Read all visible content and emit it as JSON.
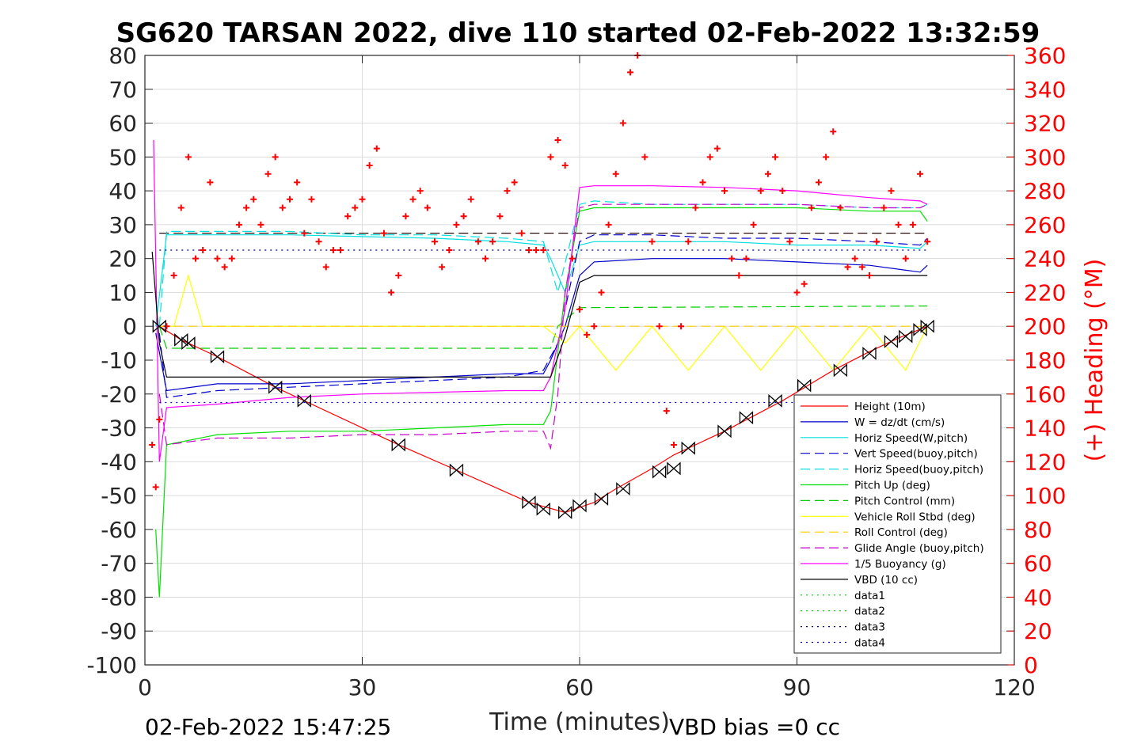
{
  "chart_data": {
    "type": "line",
    "title": "SG620 TARSAN 2022, dive 110 started 02-Feb-2022 13:32:59",
    "xlabel": "Time (minutes)",
    "ylabel_right": "(+) Heading (°M)",
    "xlim": [
      0,
      120
    ],
    "ylim": [
      -100,
      80
    ],
    "ylim_right": [
      0,
      360
    ],
    "x_ticks": [
      0,
      30,
      60,
      90,
      120
    ],
    "y_ticks": [
      80,
      70,
      60,
      50,
      40,
      30,
      20,
      10,
      0,
      -10,
      -20,
      -30,
      -40,
      -50,
      -60,
      -70,
      -80,
      -90,
      -100
    ],
    "y_ticks_right": [
      360,
      340,
      320,
      300,
      280,
      260,
      240,
      220,
      200,
      180,
      160,
      140,
      120,
      100,
      80,
      60,
      40,
      20,
      0
    ],
    "grid": true,
    "legend_position": "bottom-right",
    "footer_left": "02-Feb-2022 15:47:25",
    "footer_right": "VBD bias =0 cc",
    "series": [
      {
        "name": "Height (10m)",
        "color": "#ff0000",
        "style": "solid",
        "x": [
          2,
          5,
          10,
          18,
          22,
          35,
          43,
          53,
          58,
          62,
          65,
          70,
          73,
          80,
          88,
          95,
          100,
          104,
          108
        ],
        "y": [
          0,
          -4,
          -9,
          -18,
          -22,
          -35,
          -42.5,
          -52,
          -55,
          -52,
          -48,
          -42,
          -38,
          -31,
          -22,
          -13,
          -7.5,
          -3.5,
          0
        ]
      },
      {
        "name": "W = dz/dt (cm/s)",
        "color": "#0000cc",
        "style": "solid",
        "x": [
          1.5,
          3,
          10,
          20,
          30,
          40,
          50,
          55,
          56,
          58,
          60,
          62,
          70,
          80,
          90,
          100,
          107,
          108
        ],
        "y": [
          -2,
          -19,
          -17,
          -17,
          -16,
          -15,
          -14,
          -14,
          -10,
          0,
          15,
          19,
          20,
          20,
          19,
          18,
          16,
          18
        ]
      },
      {
        "name": "Horiz Speed(W,pitch)",
        "color": "#00e0e0",
        "style": "solid",
        "x": [
          1.5,
          3,
          10,
          20,
          30,
          40,
          50,
          55,
          56,
          58,
          60,
          62,
          70,
          80,
          90,
          100,
          107,
          108
        ],
        "y": [
          0,
          27,
          27,
          27,
          26.5,
          26,
          25,
          24,
          20,
          10,
          24,
          25,
          25,
          25,
          24,
          24,
          23,
          25
        ]
      },
      {
        "name": "Vert Speed(buoy,pitch)",
        "color": "#0000cc",
        "style": "dashed",
        "x": [
          2,
          3,
          10,
          20,
          30,
          40,
          50,
          55,
          57,
          60,
          62,
          70,
          80,
          90,
          100,
          107,
          108
        ],
        "y": [
          -2,
          -21,
          -19,
          -18,
          -17,
          -16,
          -15,
          -13,
          -5,
          25,
          27,
          27,
          26,
          26,
          25,
          24,
          26
        ]
      },
      {
        "name": "Horiz Speed(buoy,pitch)",
        "color": "#00e0e0",
        "style": "dashed",
        "x": [
          2,
          3,
          10,
          20,
          30,
          40,
          50,
          55,
          57,
          60,
          62,
          70,
          80,
          90,
          100,
          107,
          108
        ],
        "y": [
          0,
          28,
          28,
          28,
          27,
          27,
          26,
          25,
          10,
          36,
          37,
          36,
          36,
          36,
          35,
          35,
          36
        ]
      },
      {
        "name": "Pitch Up (deg)",
        "color": "#00e000",
        "style": "solid",
        "x": [
          1.5,
          2,
          3,
          10,
          20,
          30,
          40,
          50,
          55,
          56,
          58,
          60,
          62,
          70,
          80,
          90,
          100,
          107,
          108
        ],
        "y": [
          -60,
          -80,
          -35,
          -32,
          -31,
          -31,
          -30,
          -29,
          -29,
          -25,
          10,
          34,
          35,
          35,
          35,
          35,
          34,
          34,
          31
        ]
      },
      {
        "name": "Pitch Control (mm)",
        "color": "#00cc00",
        "style": "dashed",
        "x": [
          2,
          3,
          10,
          56,
          57,
          60,
          108
        ],
        "y": [
          0,
          -6.5,
          -6.5,
          -6.5,
          0,
          5.5,
          6
        ]
      },
      {
        "name": "Vehicle Roll Stbd (deg)",
        "color": "#ffff00",
        "style": "solid",
        "x": [
          2,
          4,
          6,
          8,
          10,
          20,
          30,
          40,
          50,
          55,
          58,
          60,
          65,
          70,
          75,
          80,
          85,
          90,
          95,
          100,
          105,
          108
        ],
        "y": [
          0,
          0,
          15,
          0,
          0,
          0,
          0,
          0,
          0,
          0,
          -5,
          0,
          -13,
          0,
          -13,
          0,
          -13,
          0,
          -13,
          0,
          -13,
          0
        ]
      },
      {
        "name": "Roll Control (deg)",
        "color": "#ffcc00",
        "style": "dashed",
        "x": [
          2,
          108
        ],
        "y": [
          0,
          0
        ]
      },
      {
        "name": "Glide Angle (buoy,pitch)",
        "color": "#cc00cc",
        "style": "dashed",
        "x": [
          2,
          3,
          10,
          20,
          30,
          40,
          50,
          55,
          56,
          57,
          58,
          60,
          62,
          70,
          80,
          90,
          100,
          107,
          108
        ],
        "y": [
          -20,
          -35,
          -33,
          -33,
          -32,
          -32,
          -31,
          -31,
          -36,
          -20,
          10,
          35,
          36,
          36,
          36,
          36,
          35,
          35,
          36
        ]
      },
      {
        "name": "1/5 Buoyancy (g)",
        "color": "#ff00ff",
        "style": "solid",
        "x": [
          1.2,
          2,
          3,
          10,
          20,
          30,
          40,
          50,
          55,
          56,
          58,
          60,
          62,
          70,
          80,
          90,
          100,
          107,
          108
        ],
        "y": [
          55,
          -40,
          -24,
          -23,
          -21,
          -20,
          -19.5,
          -19,
          -19,
          -15,
          5,
          41,
          41.5,
          41.5,
          41,
          40,
          38,
          37,
          36
        ]
      },
      {
        "name": "VBD (10 cc)",
        "color": "#000000",
        "style": "solid",
        "x": [
          1,
          2,
          3,
          55,
          56,
          58,
          60,
          62,
          108
        ],
        "y": [
          22,
          -5,
          -15,
          -15,
          -15,
          -3,
          13,
          15,
          15
        ]
      },
      {
        "name": "data1",
        "color": "#00cc00",
        "style": "dotted",
        "x": [],
        "y": []
      },
      {
        "name": "data2",
        "color": "#00cc00",
        "style": "dotted",
        "x": [],
        "y": []
      },
      {
        "name": "data3",
        "color": "#000080",
        "style": "dotted",
        "x": [
          2,
          108
        ],
        "y": [
          22.5,
          22.5
        ]
      },
      {
        "name": "data4",
        "color": "#0000cc",
        "style": "dotted",
        "x": [
          2,
          108
        ],
        "y": [
          -22.5,
          -22.5
        ]
      }
    ],
    "reference_lines": [
      {
        "color": "#cc0000",
        "style": "dashed",
        "y": 27.5
      },
      {
        "color": "#000000",
        "style": "dashed",
        "y": 27.5
      }
    ],
    "heading_series": {
      "color": "#ff0000",
      "marker": "+",
      "x": [
        1,
        1.5,
        2,
        3,
        4,
        5,
        6,
        7,
        8,
        9,
        10,
        11,
        12,
        13,
        14,
        15,
        16,
        17,
        18,
        19,
        20,
        21,
        22,
        23,
        24,
        25,
        26,
        27,
        28,
        29,
        30,
        31,
        32,
        33,
        34,
        35,
        36,
        37,
        38,
        39,
        40,
        41,
        42,
        43,
        44,
        45,
        46,
        47,
        48,
        49,
        50,
        51,
        52,
        53,
        54,
        55,
        56,
        57,
        58,
        59,
        60,
        61,
        62,
        63,
        64,
        65,
        66,
        67,
        68,
        69,
        70,
        71,
        72,
        73,
        74,
        75,
        76,
        77,
        78,
        79,
        80,
        81,
        82,
        83,
        84,
        85,
        86,
        87,
        88,
        89,
        90,
        91,
        92,
        93,
        94,
        95,
        96,
        97,
        98,
        99,
        100,
        101,
        102,
        103,
        104,
        105,
        106,
        107,
        108
      ],
      "y": [
        130,
        105,
        145,
        200,
        230,
        270,
        300,
        240,
        245,
        285,
        240,
        235,
        240,
        260,
        270,
        275,
        260,
        290,
        300,
        270,
        275,
        285,
        255,
        275,
        250,
        235,
        245,
        245,
        265,
        270,
        275,
        295,
        305,
        255,
        220,
        230,
        265,
        275,
        280,
        270,
        250,
        235,
        245,
        260,
        265,
        275,
        250,
        240,
        250,
        265,
        280,
        285,
        255,
        245,
        245,
        245,
        300,
        310,
        295,
        240,
        210,
        195,
        200,
        220,
        260,
        290,
        320,
        350,
        360,
        300,
        250,
        200,
        150,
        130,
        200,
        250,
        270,
        285,
        300,
        305,
        280,
        240,
        230,
        240,
        260,
        280,
        290,
        300,
        280,
        250,
        220,
        225,
        270,
        285,
        300,
        315,
        270,
        235,
        240,
        235,
        230,
        250,
        270,
        280,
        260,
        240,
        260,
        290,
        250
      ]
    },
    "markers": {
      "color": "#000000",
      "x": [
        2,
        5,
        6,
        10,
        18,
        22,
        35,
        43,
        53,
        55,
        58,
        60,
        63,
        66,
        71,
        73,
        75,
        80,
        83,
        87,
        91,
        96,
        100,
        103,
        105,
        107,
        108
      ],
      "y": [
        0,
        -4,
        -5,
        -9,
        -18,
        -22,
        -35,
        -42.5,
        -52,
        -54,
        -55,
        -53,
        -51,
        -48,
        -43,
        -42,
        -36,
        -31,
        -27,
        -22,
        -17.5,
        -13,
        -8,
        -4.5,
        -3,
        -1,
        0
      ]
    }
  }
}
